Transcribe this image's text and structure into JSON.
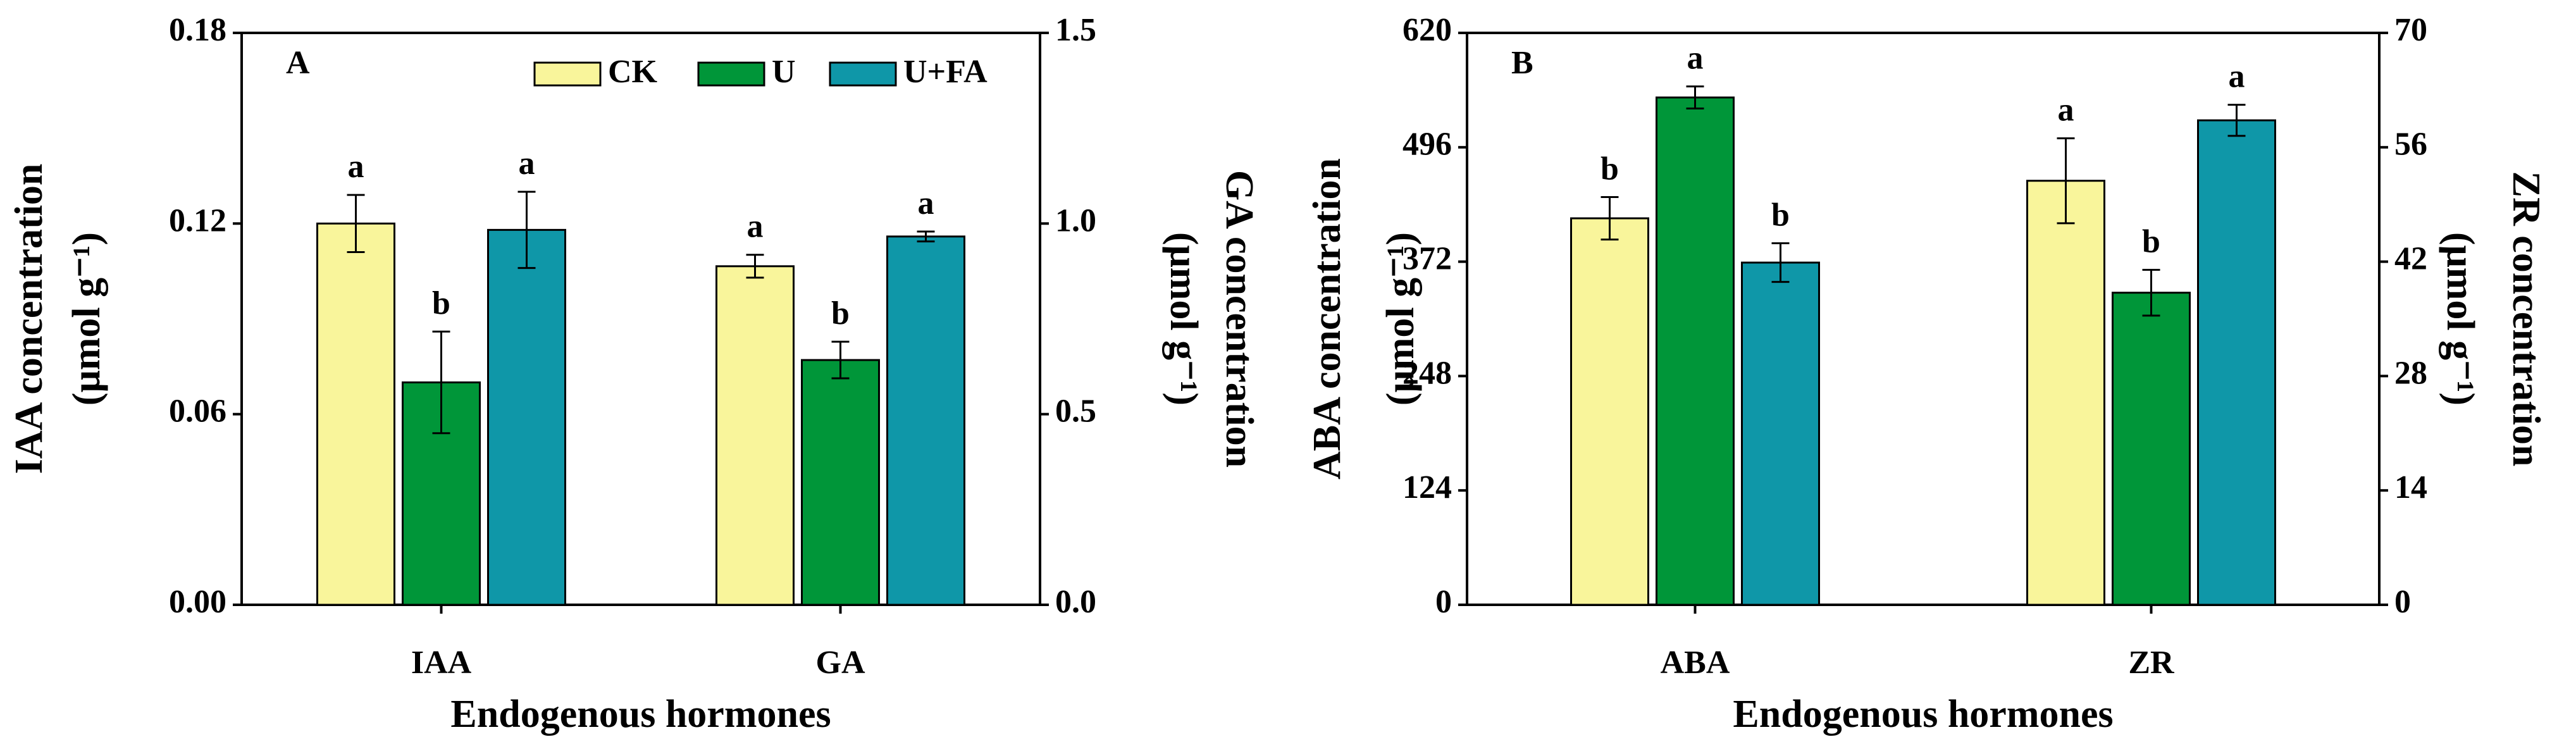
{
  "chart_data": [
    {
      "type": "bar",
      "panel_label": "A",
      "categories": [
        "IAA",
        "GA"
      ],
      "category_axes": [
        "y",
        "y2"
      ],
      "xlabel": "Endogenous hormones",
      "ylabel": [
        "IAA concentration",
        "(μmol g⁻¹)"
      ],
      "y2label": [
        "GA concentration",
        "(μmol g⁻¹)"
      ],
      "ylim": [
        0,
        0.18
      ],
      "yticks": [
        {
          "value": 0,
          "label": "0.00"
        },
        {
          "value": 0.06,
          "label": "0.06"
        },
        {
          "value": 0.12,
          "label": "0.12"
        },
        {
          "value": 0.18,
          "label": "0.18"
        }
      ],
      "y2lim": [
        0,
        1.5
      ],
      "y2ticks": [
        {
          "value": 0,
          "label": "0.0"
        },
        {
          "value": 0.5,
          "label": "0.5"
        },
        {
          "value": 1,
          "label": "1.0"
        },
        {
          "value": 1.5,
          "label": "1.5"
        }
      ],
      "legend": "upper right",
      "series": [
        {
          "name": "CK",
          "color": "#f9f59b",
          "values": [
            0.12,
            0.888
          ],
          "errors": [
            0.009,
            0.03
          ],
          "letters": [
            "a",
            "a"
          ]
        },
        {
          "name": "U",
          "color": "#009639",
          "values": [
            0.07,
            0.642
          ],
          "errors": [
            0.016,
            0.048
          ],
          "letters": [
            "b",
            "b"
          ]
        },
        {
          "name": "U+FA",
          "color": "#0f97a8",
          "values": [
            0.118,
            0.966
          ],
          "errors": [
            0.012,
            0.013
          ],
          "letters": [
            "a",
            "a"
          ]
        }
      ]
    },
    {
      "type": "bar",
      "panel_label": "B",
      "categories": [
        "ABA",
        "ZR"
      ],
      "category_axes": [
        "y",
        "y2"
      ],
      "xlabel": "Endogenous hormones",
      "ylabel": [
        "ABA concentration",
        "(μmol g⁻¹)"
      ],
      "y2label": [
        "ZR concentration",
        "(μmol g⁻¹)"
      ],
      "ylim": [
        0,
        620
      ],
      "yticks": [
        0,
        124,
        248,
        372,
        496,
        620
      ],
      "y2lim": [
        0,
        70
      ],
      "y2ticks": [
        0,
        14,
        28,
        42,
        56,
        70
      ],
      "series": [
        {
          "name": "CK",
          "color": "#f9f59b",
          "values": [
            419,
            51.9
          ],
          "errors": [
            23,
            5.2
          ],
          "letters": [
            "b",
            "a"
          ]
        },
        {
          "name": "U",
          "color": "#009639",
          "values": [
            550,
            38.2
          ],
          "errors": [
            12,
            2.8
          ],
          "letters": [
            "a",
            "b"
          ]
        },
        {
          "name": "U+FA",
          "color": "#0f97a8",
          "values": [
            371,
            59.3
          ],
          "errors": [
            21,
            1.9
          ],
          "letters": [
            "b",
            "a"
          ]
        }
      ]
    }
  ]
}
